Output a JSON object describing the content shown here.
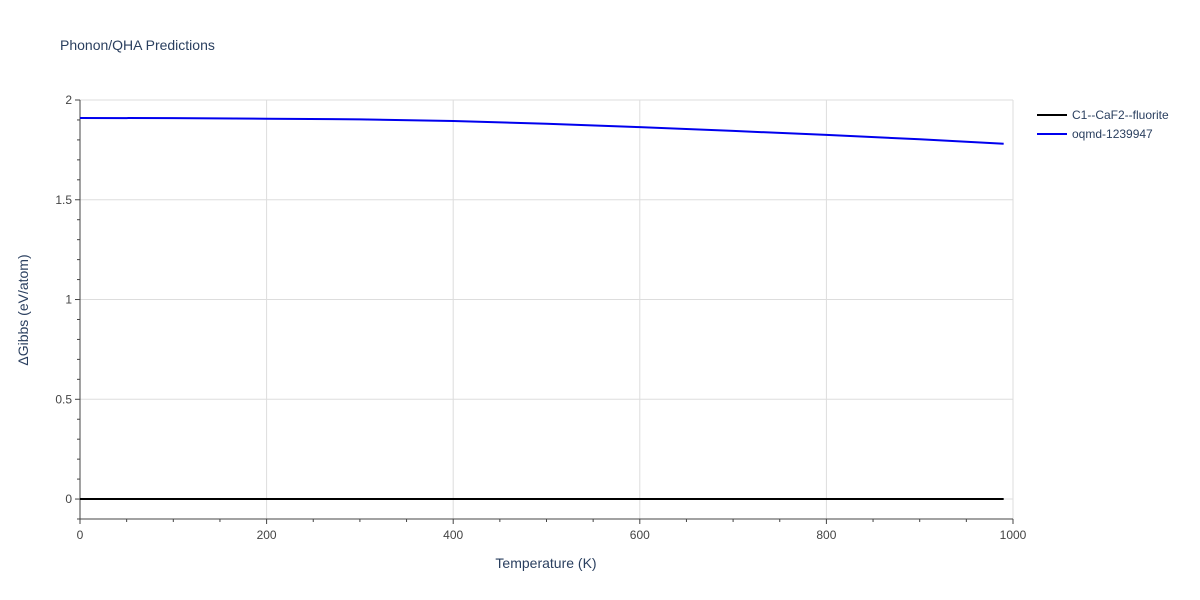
{
  "chart_data": {
    "type": "line",
    "title": "Phonon/QHA Predictions",
    "xlabel": "Temperature (K)",
    "ylabel": "ΔGibbs (eV/atom)",
    "xlim": [
      0,
      1000
    ],
    "ylim": [
      -0.1,
      2.0
    ],
    "xticks": [
      0,
      200,
      400,
      600,
      800,
      1000
    ],
    "xtick_labels": [
      "0",
      "200",
      "400",
      "600",
      "800",
      "1000"
    ],
    "yticks": [
      0,
      0.5,
      1,
      1.5,
      2
    ],
    "ytick_labels": [
      "0",
      "0.5",
      "1",
      "1.5",
      "2"
    ],
    "grid": true,
    "legend_position": "top-right, outside plot",
    "series": [
      {
        "name": "C1--CaF2--fluorite",
        "color": "#000000",
        "x": [
          0,
          100,
          200,
          300,
          400,
          500,
          600,
          700,
          800,
          900,
          990
        ],
        "y": [
          0,
          0,
          0,
          0,
          0,
          0,
          0,
          0,
          0,
          0,
          0
        ]
      },
      {
        "name": "oqmd-1239947",
        "color": "#0000ee",
        "x": [
          0,
          100,
          200,
          270,
          300,
          400,
          500,
          600,
          700,
          800,
          900,
          990
        ],
        "y": [
          1.91,
          1.909,
          1.906,
          1.904,
          1.903,
          1.895,
          1.881,
          1.864,
          1.845,
          1.825,
          1.803,
          1.781
        ]
      }
    ]
  }
}
